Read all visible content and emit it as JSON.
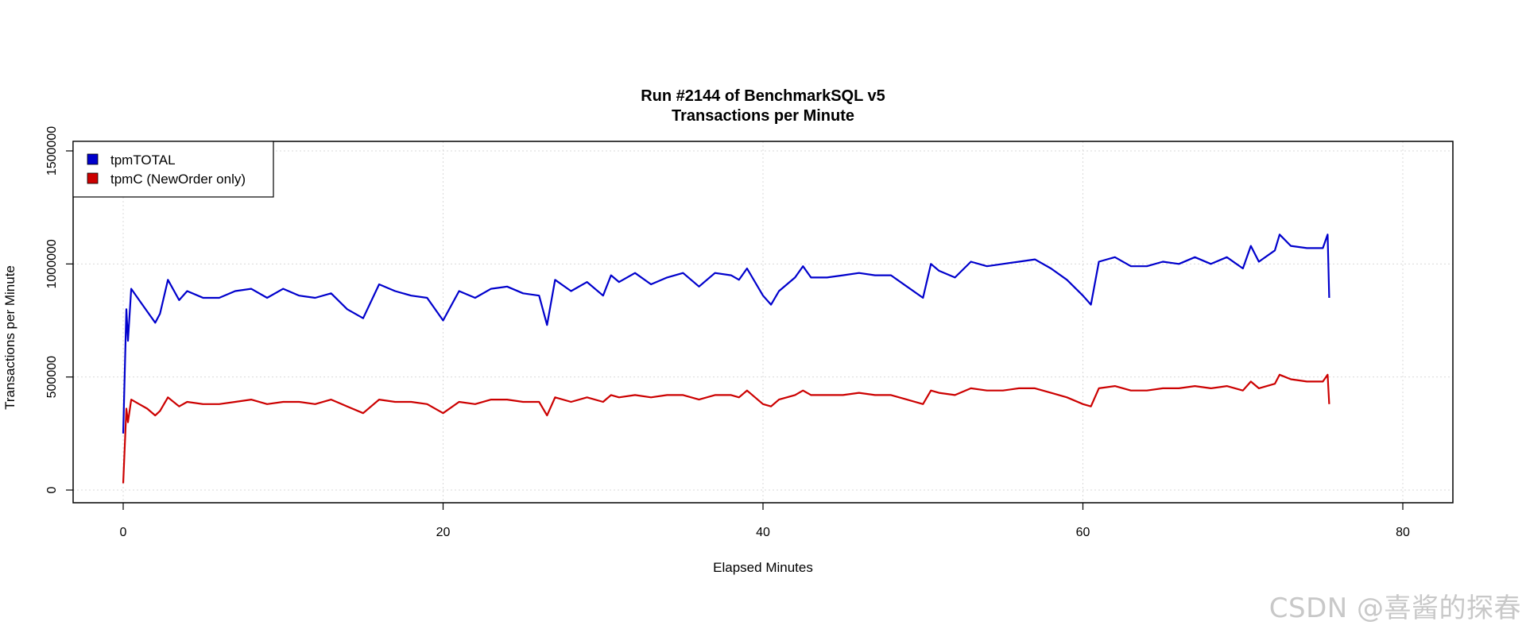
{
  "chart_data": {
    "type": "line",
    "title": "Run #2144 of BenchmarkSQL v5",
    "subtitle": "Transactions per Minute",
    "xlabel": "Elapsed Minutes",
    "ylabel": "Transactions per Minute",
    "xlim": [
      0,
      80
    ],
    "ylim": [
      0,
      1500000
    ],
    "x_ticks": [
      "0",
      "20",
      "40",
      "60",
      "80"
    ],
    "y_ticks": [
      "0",
      "500000",
      "1000000",
      "1500000"
    ],
    "grid": true,
    "legend_position": "top-left",
    "series": [
      {
        "name": "tpmTOTAL",
        "color": "#0000cc",
        "x": [
          0,
          0.2,
          0.3,
          0.5,
          1,
          1.5,
          2,
          2.3,
          2.8,
          3.5,
          4,
          5,
          6,
          7,
          8,
          9,
          10,
          11,
          12,
          13,
          14,
          15,
          16,
          17,
          18,
          19,
          20,
          21,
          22,
          23,
          24,
          25,
          26,
          26.5,
          27,
          28,
          29,
          30,
          30.5,
          31,
          32,
          33,
          34,
          35,
          36,
          37,
          38,
          38.5,
          39,
          40,
          40.5,
          41,
          42,
          42.5,
          43,
          44,
          45,
          46,
          47,
          48,
          49,
          50,
          50.5,
          51,
          52,
          53,
          54,
          55,
          56,
          57,
          58,
          59,
          60,
          60.5,
          61,
          62,
          63,
          64,
          65,
          66,
          67,
          68,
          69,
          70,
          70.5,
          71,
          72,
          72.3,
          73,
          74,
          75,
          75.3,
          75.4
        ],
        "values": [
          250000,
          800000,
          660000,
          890000,
          840000,
          790000,
          740000,
          780000,
          930000,
          840000,
          880000,
          850000,
          850000,
          880000,
          890000,
          850000,
          890000,
          860000,
          850000,
          870000,
          800000,
          760000,
          910000,
          880000,
          860000,
          850000,
          750000,
          880000,
          850000,
          890000,
          900000,
          870000,
          860000,
          730000,
          930000,
          880000,
          920000,
          860000,
          950000,
          920000,
          960000,
          910000,
          940000,
          960000,
          900000,
          960000,
          950000,
          930000,
          980000,
          860000,
          820000,
          880000,
          940000,
          990000,
          940000,
          940000,
          950000,
          960000,
          950000,
          950000,
          900000,
          850000,
          1000000,
          970000,
          940000,
          1010000,
          990000,
          1000000,
          1010000,
          1020000,
          980000,
          930000,
          860000,
          820000,
          1010000,
          1030000,
          990000,
          990000,
          1010000,
          1000000,
          1030000,
          1000000,
          1030000,
          980000,
          1080000,
          1010000,
          1060000,
          1130000,
          1080000,
          1070000,
          1070000,
          1130000,
          850000
        ]
      },
      {
        "name": "tpmC (NewOrder only)",
        "color": "#cc0000",
        "x": [
          0,
          0.2,
          0.3,
          0.5,
          1,
          1.5,
          2,
          2.3,
          2.8,
          3.5,
          4,
          5,
          6,
          7,
          8,
          9,
          10,
          11,
          12,
          13,
          14,
          15,
          16,
          17,
          18,
          19,
          20,
          21,
          22,
          23,
          24,
          25,
          26,
          26.5,
          27,
          28,
          29,
          30,
          30.5,
          31,
          32,
          33,
          34,
          35,
          36,
          37,
          38,
          38.5,
          39,
          40,
          40.5,
          41,
          42,
          42.5,
          43,
          44,
          45,
          46,
          47,
          48,
          49,
          50,
          50.5,
          51,
          52,
          53,
          54,
          55,
          56,
          57,
          58,
          59,
          60,
          60.5,
          61,
          62,
          63,
          64,
          65,
          66,
          67,
          68,
          69,
          70,
          70.5,
          71,
          72,
          72.3,
          73,
          74,
          75,
          75.3,
          75.4
        ],
        "values": [
          30000,
          360000,
          300000,
          400000,
          380000,
          360000,
          330000,
          350000,
          410000,
          370000,
          390000,
          380000,
          380000,
          390000,
          400000,
          380000,
          390000,
          390000,
          380000,
          400000,
          370000,
          340000,
          400000,
          390000,
          390000,
          380000,
          340000,
          390000,
          380000,
          400000,
          400000,
          390000,
          390000,
          330000,
          410000,
          390000,
          410000,
          390000,
          420000,
          410000,
          420000,
          410000,
          420000,
          420000,
          400000,
          420000,
          420000,
          410000,
          440000,
          380000,
          370000,
          400000,
          420000,
          440000,
          420000,
          420000,
          420000,
          430000,
          420000,
          420000,
          400000,
          380000,
          440000,
          430000,
          420000,
          450000,
          440000,
          440000,
          450000,
          450000,
          430000,
          410000,
          380000,
          370000,
          450000,
          460000,
          440000,
          440000,
          450000,
          450000,
          460000,
          450000,
          460000,
          440000,
          480000,
          450000,
          470000,
          510000,
          490000,
          480000,
          480000,
          510000,
          380000
        ]
      }
    ]
  },
  "watermark": "CSDN @喜酱的探春"
}
